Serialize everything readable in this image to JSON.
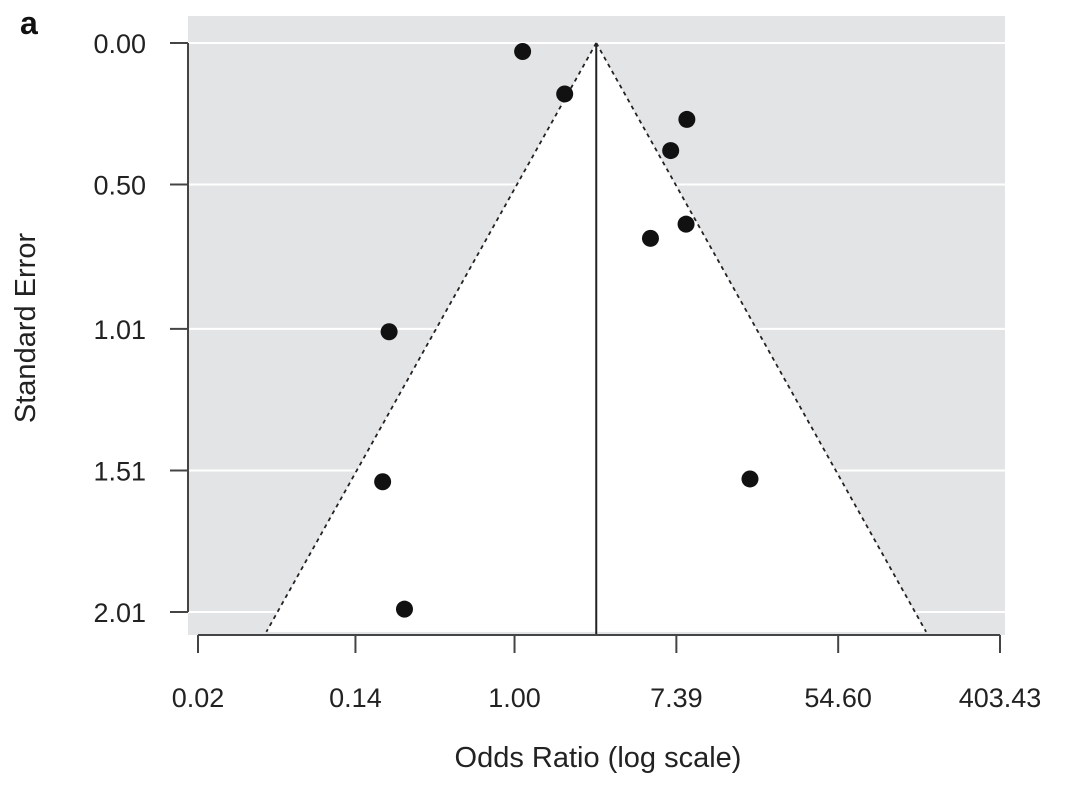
{
  "chart_data": {
    "type": "scatter",
    "panel_label": "a",
    "title": "",
    "xlabel": "Odds Ratio (log scale)",
    "ylabel": "Standard Error",
    "x_scale": "log",
    "x_ticks": [
      {
        "value": 0.02,
        "label": "0.02"
      },
      {
        "value": 0.14,
        "label": "0.14"
      },
      {
        "value": 1.0,
        "label": "1.00"
      },
      {
        "value": 7.39,
        "label": "7.39"
      },
      {
        "value": 54.6,
        "label": "54.60"
      },
      {
        "value": 403.43,
        "label": "403.43"
      }
    ],
    "y_ticks": [
      {
        "value": 0.0,
        "label": "0.00"
      },
      {
        "value": 0.5,
        "label": "0.50"
      },
      {
        "value": 1.01,
        "label": "1.01"
      },
      {
        "value": 1.51,
        "label": "1.51"
      },
      {
        "value": 2.01,
        "label": "2.01"
      }
    ],
    "xlim_ln": [
      -4.05,
      6.2
    ],
    "ylim": [
      0.0,
      2.08
    ],
    "y_inverted": true,
    "grid": true,
    "summary_log_or": 1.01,
    "funnel_multiplier": 1.96,
    "points": [
      {
        "log_or": 0.1,
        "se": 0.03
      },
      {
        "log_or": 0.62,
        "se": 0.18
      },
      {
        "log_or": 2.13,
        "se": 0.27
      },
      {
        "log_or": 1.93,
        "se": 0.38
      },
      {
        "log_or": 2.12,
        "se": 0.64
      },
      {
        "log_or": 1.68,
        "se": 0.69
      },
      {
        "log_or": -1.55,
        "se": 1.02
      },
      {
        "log_or": -1.63,
        "se": 1.55
      },
      {
        "log_or": 2.91,
        "se": 1.54
      },
      {
        "log_or": -1.36,
        "se": 2.0
      }
    ]
  },
  "colors": {
    "panel_bg": "#e3e4e6",
    "funnel_fill": "#ffffff",
    "grid": "#ffffff",
    "axis": "#444444",
    "point": "#111111",
    "line": "#222222"
  }
}
